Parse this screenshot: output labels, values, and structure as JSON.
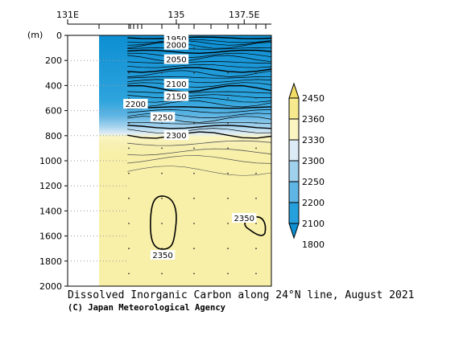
{
  "chart_data": {
    "type": "contour",
    "title": "Dissolved Inorganic Carbon along 24°N line, August 2021",
    "credit": "(C) Japan Meteorological Agency",
    "ylabel": "(m)",
    "x_ticks": [
      {
        "value": 131,
        "label": "131E"
      },
      {
        "value": 135,
        "label": "135"
      },
      {
        "value": 137.5,
        "label": "137.5E"
      }
    ],
    "xlim": [
      131,
      138.5
    ],
    "y_ticks": [
      0,
      200,
      400,
      600,
      800,
      1000,
      1200,
      1400,
      1600,
      1800,
      2000
    ],
    "ylim": [
      0,
      2000
    ],
    "data_start_lon": 133.2,
    "colorbar": {
      "labels": [
        "2450",
        "2360",
        "2330",
        "2300",
        "2250",
        "2200",
        "2100",
        "1800"
      ],
      "colors": [
        "#f2dc63",
        "#f6e98e",
        "#fbf5c2",
        "#dcebf5",
        "#9fd0ec",
        "#5fb5e4",
        "#26a0dc",
        "#0d8fd2"
      ]
    },
    "contour_labels": [
      {
        "text": "1950",
        "lon": 135.0,
        "depth": 25
      },
      {
        "text": "2000",
        "lon": 135.0,
        "depth": 75
      },
      {
        "text": "2050",
        "lon": 135.0,
        "depth": 190
      },
      {
        "text": "2100",
        "lon": 135.0,
        "depth": 385
      },
      {
        "text": "2150",
        "lon": 135.0,
        "depth": 485
      },
      {
        "text": "2200",
        "lon": 133.5,
        "depth": 545
      },
      {
        "text": "2250",
        "lon": 134.5,
        "depth": 650
      },
      {
        "text": "2300",
        "lon": 135.0,
        "depth": 795
      },
      {
        "text": "2350",
        "lon": 137.5,
        "depth": 1455
      },
      {
        "text": "2350",
        "lon": 134.5,
        "depth": 1750
      }
    ]
  }
}
